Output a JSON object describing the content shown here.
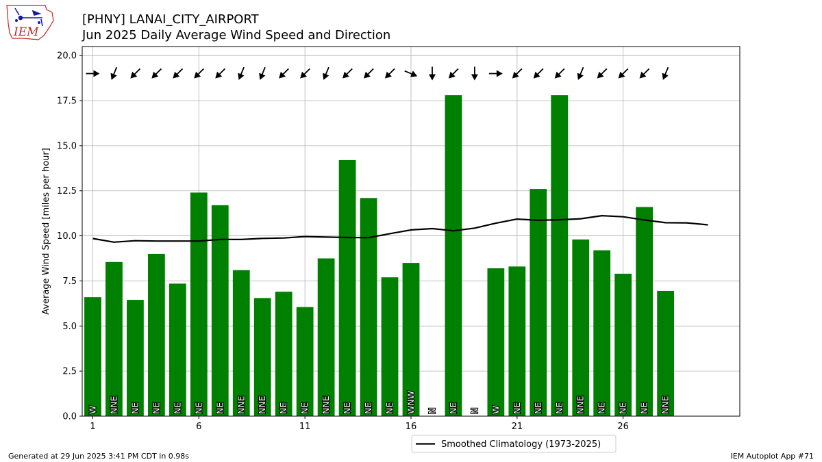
{
  "chart_data": {
    "type": "bar",
    "title": "[PHNY] LANAI_CITY_AIRPORT",
    "subtitle": "Jun 2025 Daily Average Wind Speed and Direction",
    "xlabel": "",
    "ylabel": "Average Wind Speed [miles per hour]",
    "xlim": [
      0.5,
      31.5
    ],
    "ylim": [
      0,
      20.5
    ],
    "xticks": [
      1,
      6,
      11,
      16,
      21,
      26
    ],
    "yticks": [
      0,
      2.5,
      5,
      7.5,
      10,
      12.5,
      15,
      17.5,
      20
    ],
    "ytick_labels": [
      "0.0",
      "2.5",
      "5.0",
      "7.5",
      "10.0",
      "12.5",
      "15.0",
      "17.5",
      "20.0"
    ],
    "grid": true,
    "bar_color": "#008000",
    "line_color": "#000000",
    "days": [
      1,
      2,
      3,
      4,
      5,
      6,
      7,
      8,
      9,
      10,
      11,
      12,
      13,
      14,
      15,
      16,
      17,
      18,
      19,
      20,
      21,
      22,
      23,
      24,
      25,
      26,
      27,
      28
    ],
    "speeds": [
      6.6,
      8.55,
      6.45,
      9.0,
      7.35,
      12.4,
      11.7,
      8.1,
      6.55,
      6.9,
      6.05,
      8.75,
      14.2,
      12.1,
      7.7,
      8.5,
      0,
      17.8,
      0,
      8.2,
      8.3,
      12.6,
      17.8,
      9.8,
      9.2,
      7.9,
      11.6,
      6.95
    ],
    "directions": [
      "W",
      "NNE",
      "NE",
      "NE",
      "NE",
      "NE",
      "NE",
      "NNE",
      "NNE",
      "NE",
      "NE",
      "NNE",
      "NE",
      "NE",
      "NE",
      "WNW",
      "N",
      "NE",
      "N",
      "W",
      "NE",
      "NE",
      "NE",
      "NNE",
      "NE",
      "NE",
      "NE",
      "NNE"
    ],
    "arrow_angles_deg": [
      270,
      22.5,
      45,
      45,
      45,
      45,
      45,
      22.5,
      22.5,
      45,
      45,
      22.5,
      45,
      45,
      45,
      292.5,
      0,
      45,
      0,
      270,
      45,
      45,
      45,
      22.5,
      45,
      45,
      45,
      22.5
    ],
    "series": [
      {
        "name": "Smoothed Climatology (1973-2025)",
        "x": [
          1,
          2,
          3,
          4,
          5,
          6,
          7,
          8,
          9,
          10,
          11,
          12,
          13,
          14,
          15,
          16,
          17,
          18,
          19,
          20,
          21,
          22,
          23,
          24,
          25,
          26,
          27,
          28,
          29,
          30
        ],
        "values": [
          9.85,
          9.65,
          9.73,
          9.71,
          9.71,
          9.71,
          9.8,
          9.8,
          9.86,
          9.88,
          9.96,
          9.93,
          9.91,
          9.9,
          10.12,
          10.33,
          10.4,
          10.28,
          10.43,
          10.7,
          10.93,
          10.86,
          10.89,
          10.95,
          11.12,
          11.06,
          10.88,
          10.73,
          10.72,
          10.61
        ]
      }
    ],
    "legend_position": "bottom-center"
  },
  "footer": {
    "generated": "Generated at 29 Jun 2025 3:41 PM CDT in 0.98s",
    "app": "IEM Autoplot App #71"
  },
  "logo": {
    "text": "IEM",
    "color": "#cc2222",
    "icon_color": "#1a1aa6"
  }
}
